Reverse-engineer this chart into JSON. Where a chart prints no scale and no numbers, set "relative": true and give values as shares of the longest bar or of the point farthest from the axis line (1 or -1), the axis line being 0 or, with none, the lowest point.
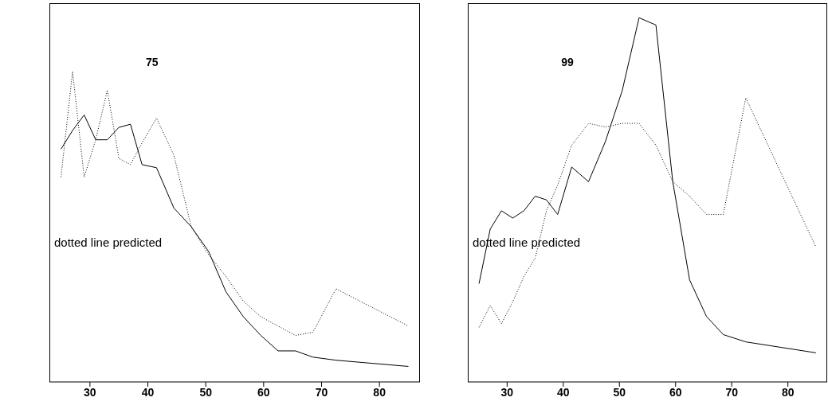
{
  "chart_data": [
    {
      "type": "line",
      "title": "75",
      "relative": true,
      "annotations": [
        "dotted line predicted"
      ],
      "x": [
        25,
        27,
        29,
        31,
        33,
        35,
        37,
        39,
        41.5,
        44.5,
        47.5,
        50.5,
        53.5,
        56.5,
        59.5,
        62.5,
        65.5,
        68.5,
        72.5,
        85
      ],
      "xlim": [
        23,
        87
      ],
      "xticks": [
        30,
        40,
        50,
        60,
        70,
        80
      ],
      "series": [
        {
          "color": "#000000",
          "line_style": "solid",
          "values": [
            0.75,
            0.81,
            0.86,
            0.78,
            0.78,
            0.82,
            0.83,
            0.7,
            0.69,
            0.56,
            0.5,
            0.42,
            0.29,
            0.21,
            0.15,
            0.1,
            0.1,
            0.08,
            0.07,
            0.05
          ]
        },
        {
          "color": "#000000",
          "line_style": "dotted",
          "values": [
            0.66,
            1.0,
            0.66,
            0.78,
            0.94,
            0.72,
            0.7,
            0.77,
            0.85,
            0.73,
            0.5,
            0.41,
            0.34,
            0.26,
            0.21,
            0.18,
            0.15,
            0.16,
            0.3,
            0.18
          ]
        }
      ]
    },
    {
      "type": "line",
      "title": "99",
      "relative": true,
      "annotations": [
        "dotted line predicted"
      ],
      "x": [
        25,
        27,
        29,
        31,
        33,
        35,
        37,
        39,
        41.5,
        44.5,
        47.5,
        50.5,
        53.5,
        56.5,
        59.5,
        62.5,
        65.5,
        68.5,
        72.5,
        85
      ],
      "xlim": [
        23,
        87
      ],
      "xticks": [
        30,
        40,
        50,
        60,
        70,
        80
      ],
      "series": [
        {
          "color": "#000000",
          "line_style": "solid",
          "values": [
            0.27,
            0.42,
            0.47,
            0.45,
            0.47,
            0.51,
            0.5,
            0.46,
            0.59,
            0.55,
            0.66,
            0.8,
            1.0,
            0.98,
            0.55,
            0.28,
            0.18,
            0.13,
            0.11,
            0.08
          ]
        },
        {
          "color": "#000000",
          "line_style": "dotted",
          "values": [
            0.15,
            0.21,
            0.16,
            0.22,
            0.29,
            0.34,
            0.47,
            0.54,
            0.65,
            0.71,
            0.7,
            0.71,
            0.71,
            0.65,
            0.55,
            0.51,
            0.46,
            0.46,
            0.78,
            0.37
          ]
        }
      ]
    }
  ]
}
